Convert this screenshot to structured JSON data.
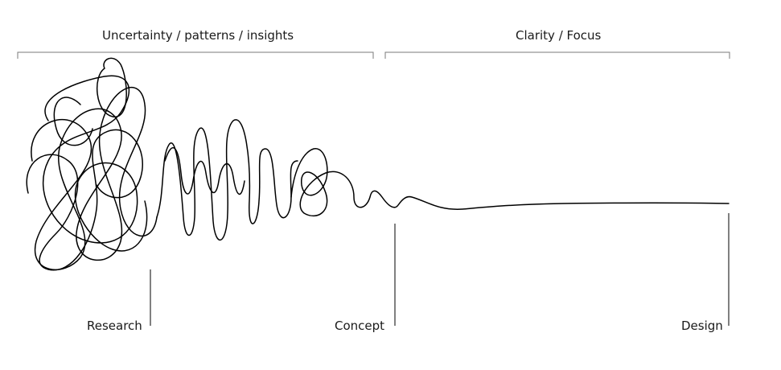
{
  "sections": [
    {
      "label": "Uncertainty / patterns / insights"
    },
    {
      "label": "Clarity / Focus"
    }
  ],
  "milestones": [
    {
      "label": "Research"
    },
    {
      "label": "Concept"
    },
    {
      "label": "Design"
    }
  ],
  "colors": {
    "line": "#000000",
    "bracket": "#7a7a7a",
    "text": "#1a1a1a"
  }
}
